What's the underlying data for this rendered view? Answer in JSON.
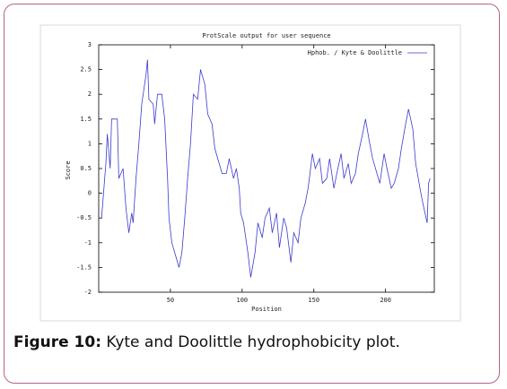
{
  "chart_data": {
    "type": "line",
    "title": "ProtScale output for user sequence",
    "xlabel": "Position",
    "ylabel": "Score",
    "xlim": [
      0,
      234
    ],
    "xticks": [
      50,
      100,
      150,
      200
    ],
    "ylim": [
      -2,
      3
    ],
    "yticks": [
      3,
      2.5,
      2,
      1.5,
      1,
      0.5,
      0,
      -0.5,
      -1,
      -1.5,
      -2
    ],
    "grid": false,
    "legend": "upper right",
    "x": [
      2,
      5,
      6,
      8,
      9,
      13,
      14,
      17,
      19,
      21,
      23,
      24,
      26,
      28,
      30,
      33,
      34,
      35,
      38,
      39,
      41,
      44,
      46,
      48,
      49,
      51,
      54,
      56,
      58,
      60,
      62,
      64,
      66,
      69,
      71,
      74,
      76,
      79,
      81,
      84,
      86,
      89,
      91,
      94,
      96,
      98,
      99,
      101,
      104,
      106,
      109,
      111,
      114,
      116,
      119,
      121,
      124,
      126,
      129,
      131,
      134,
      136,
      139,
      141,
      144,
      146,
      149,
      151,
      154,
      156,
      159,
      161,
      164,
      166,
      169,
      171,
      174,
      176,
      179,
      181,
      184,
      186,
      189,
      191,
      194,
      196,
      199,
      201,
      204,
      206,
      209,
      211,
      214,
      216,
      219,
      221,
      224,
      226,
      229,
      230,
      231
    ],
    "series": [
      {
        "name": "Hphob. / Kyte & Doolittle",
        "color": "#3a3ad0",
        "values": [
          -0.5,
          0.6,
          1.2,
          0.5,
          1.5,
          1.5,
          0.3,
          0.5,
          -0.3,
          -0.8,
          -0.4,
          -0.6,
          0.3,
          1.0,
          1.8,
          2.4,
          2.7,
          1.9,
          1.8,
          1.4,
          2.0,
          2.0,
          1.5,
          0.3,
          -0.5,
          -1.0,
          -1.3,
          -1.5,
          -1.2,
          -0.5,
          0.3,
          1.0,
          2.0,
          1.9,
          2.5,
          2.2,
          1.6,
          1.4,
          0.9,
          0.6,
          0.4,
          0.4,
          0.7,
          0.3,
          0.5,
          0.1,
          -0.4,
          -0.6,
          -1.2,
          -1.7,
          -1.2,
          -0.6,
          -0.9,
          -0.5,
          -0.3,
          -0.8,
          -0.4,
          -1.1,
          -0.5,
          -0.7,
          -1.4,
          -0.8,
          -1.0,
          -0.5,
          -0.2,
          0.1,
          0.8,
          0.5,
          0.7,
          0.2,
          0.3,
          0.7,
          0.1,
          0.4,
          0.8,
          0.3,
          0.6,
          0.2,
          0.4,
          0.8,
          1.2,
          1.5,
          1.0,
          0.7,
          0.4,
          0.2,
          0.8,
          0.5,
          0.1,
          0.2,
          0.5,
          0.9,
          1.4,
          1.7,
          1.3,
          0.6,
          0.1,
          -0.2,
          -0.6,
          0.2,
          0.3
        ]
      }
    ]
  },
  "caption": {
    "label": "Figure 10:",
    "text": "Kyte and Doolittle hydrophobicity plot."
  }
}
